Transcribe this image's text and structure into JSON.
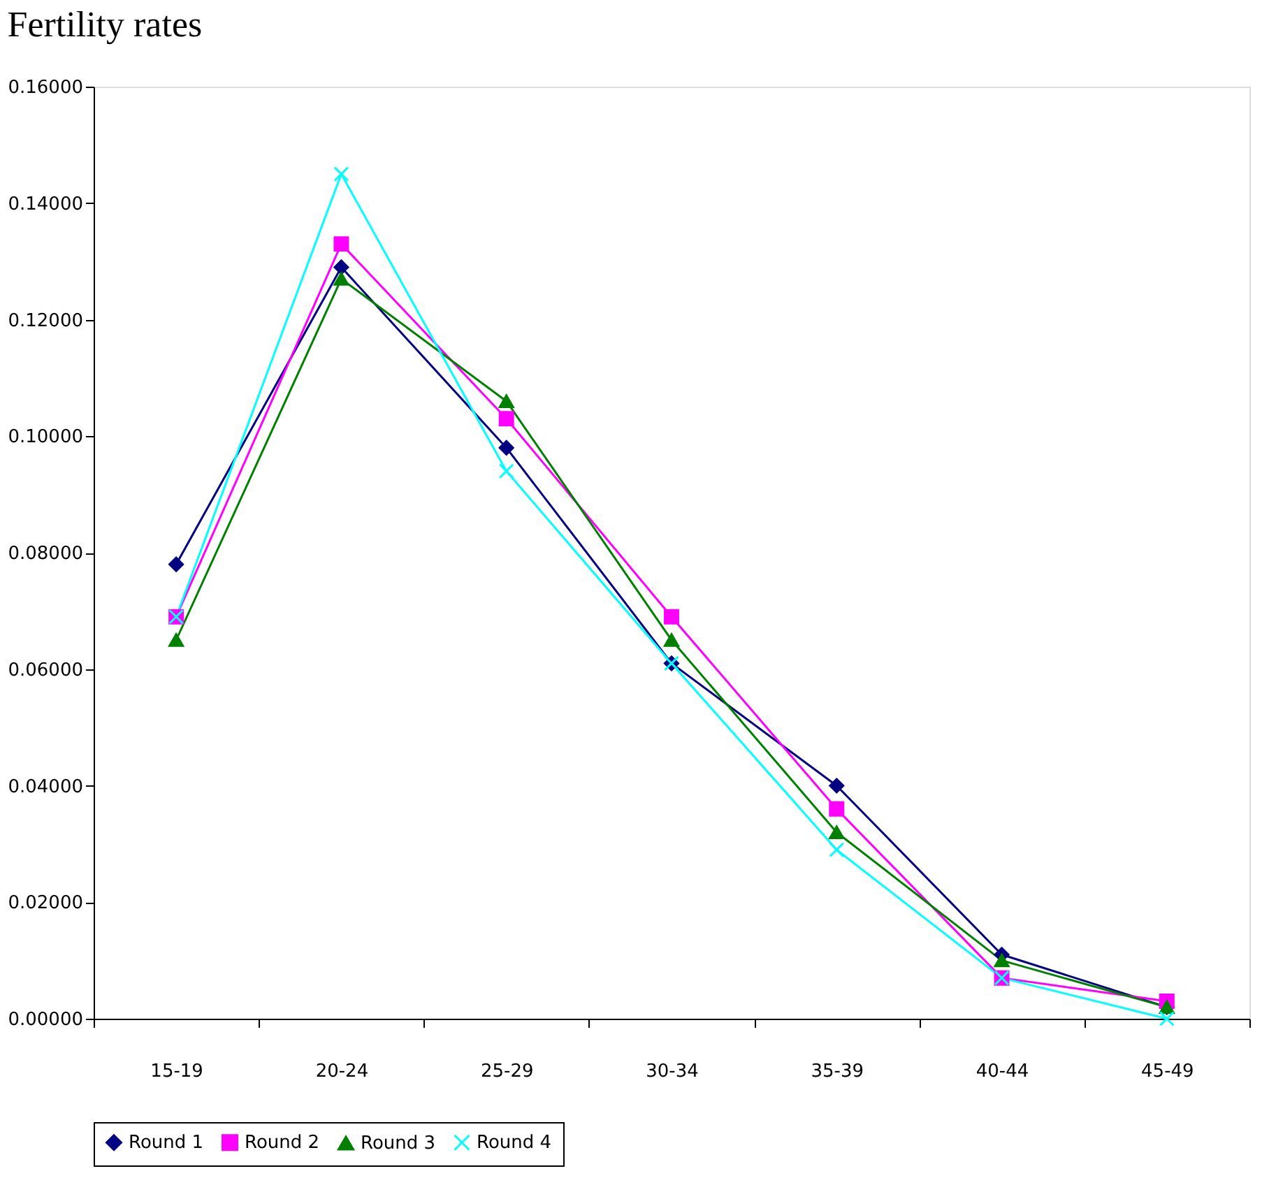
{
  "chart_data": {
    "type": "line",
    "title": "Fertility rates",
    "categories": [
      "15-19",
      "20-24",
      "25-29",
      "30-34",
      "35-39",
      "40-44",
      "45-49"
    ],
    "series": [
      {
        "name": "Round 1",
        "color": "#000080",
        "marker": "diamond",
        "values": [
          0.078,
          0.129,
          0.098,
          0.061,
          0.04,
          0.011,
          0.002
        ]
      },
      {
        "name": "Round 2",
        "color": "#ff00ff",
        "marker": "square",
        "values": [
          0.069,
          0.133,
          0.103,
          0.069,
          0.036,
          0.007,
          0.003
        ]
      },
      {
        "name": "Round 3",
        "color": "#008000",
        "marker": "triangle",
        "values": [
          0.065,
          0.127,
          0.106,
          0.065,
          0.032,
          0.01,
          0.002
        ]
      },
      {
        "name": "Round 4",
        "color": "#00ffff",
        "marker": "cross",
        "values": [
          0.069,
          0.145,
          0.094,
          0.061,
          0.029,
          0.007,
          0.0
        ]
      }
    ],
    "ylim": [
      0,
      0.16
    ],
    "yticks": [
      {
        "value": 0,
        "label": "0.00000"
      },
      {
        "value": 0.02,
        "label": "0.02000"
      },
      {
        "value": 0.04,
        "label": "0.04000"
      },
      {
        "value": 0.06,
        "label": "0.06000"
      },
      {
        "value": 0.08,
        "label": "0.08000"
      },
      {
        "value": 0.1,
        "label": "0.10000"
      },
      {
        "value": 0.12,
        "label": "0.12000"
      },
      {
        "value": 0.14,
        "label": "0.14000"
      },
      {
        "value": 0.16,
        "label": "0.16000"
      }
    ],
    "grid": false,
    "legend": "bottom",
    "line_style": "solid"
  }
}
